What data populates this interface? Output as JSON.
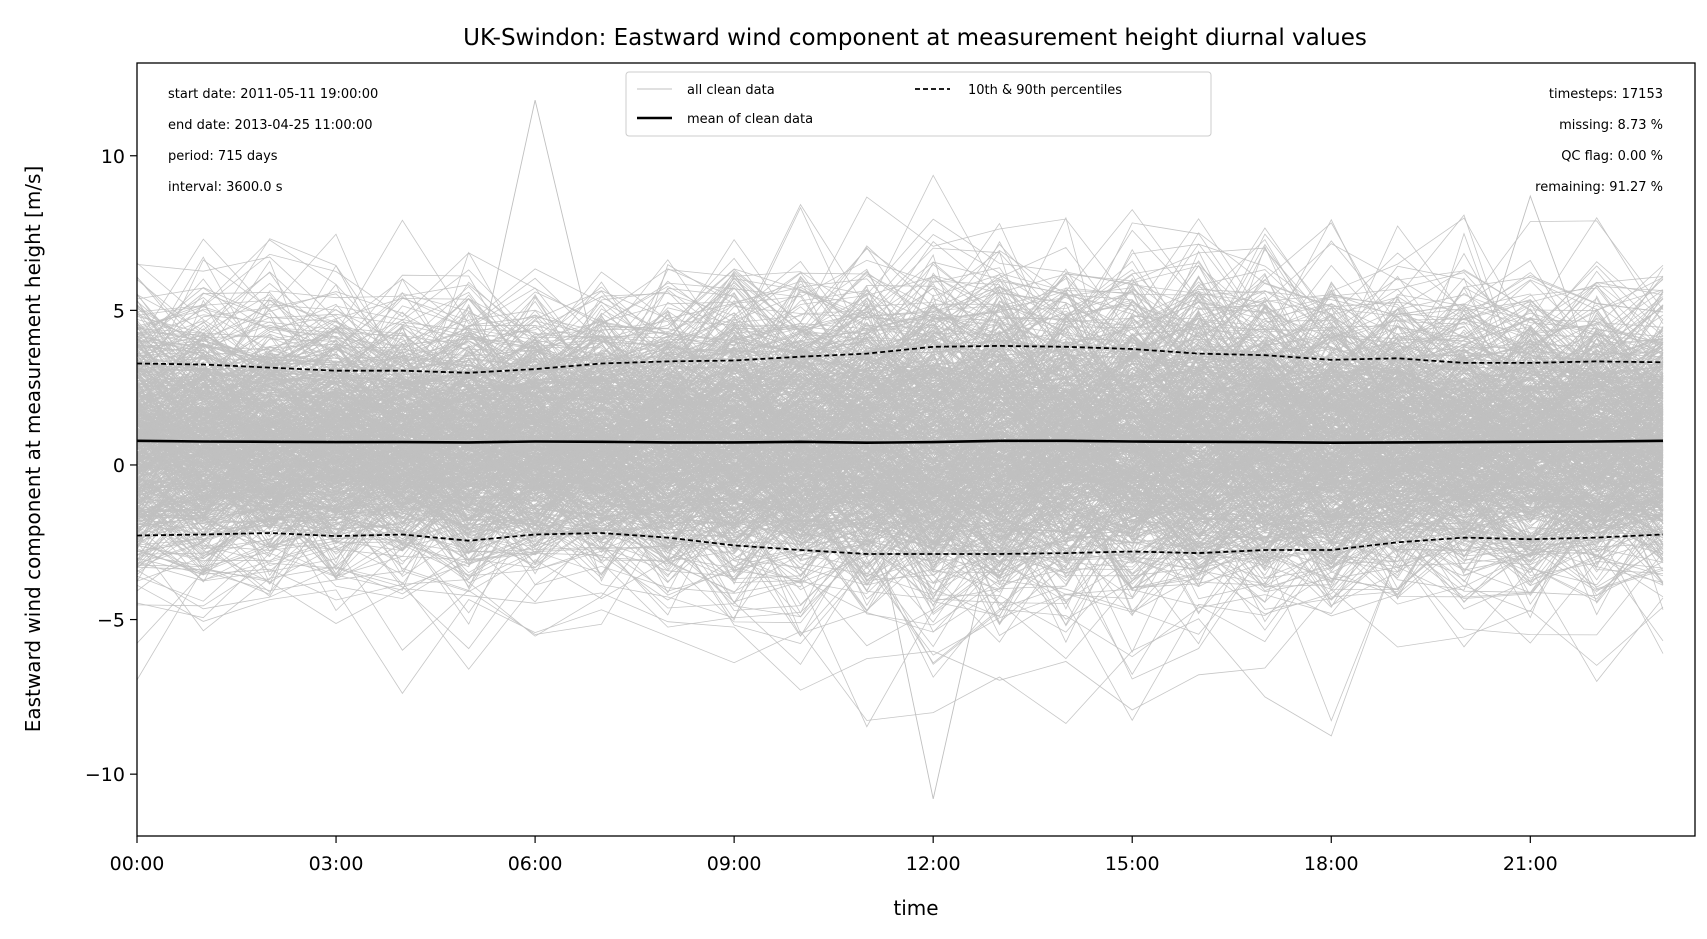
{
  "chart_data": {
    "type": "line",
    "title": "UK-Swindon: Eastward wind component at measurement height diurnal values",
    "xlabel": "time",
    "ylabel": "Eastward wind component at measurement height [m/s]",
    "xlim": [
      0,
      23
    ],
    "ylim": [
      -12,
      13
    ],
    "x_hours": [
      0,
      1,
      2,
      3,
      4,
      5,
      6,
      7,
      8,
      9,
      10,
      11,
      12,
      13,
      14,
      15,
      16,
      17,
      18,
      19,
      20,
      21,
      22,
      23
    ],
    "x_ticks": [
      {
        "hour": 0,
        "label": "00:00"
      },
      {
        "hour": 3,
        "label": "03:00"
      },
      {
        "hour": 6,
        "label": "06:00"
      },
      {
        "hour": 9,
        "label": "09:00"
      },
      {
        "hour": 12,
        "label": "12:00"
      },
      {
        "hour": 15,
        "label": "15:00"
      },
      {
        "hour": 18,
        "label": "18:00"
      },
      {
        "hour": 21,
        "label": "21:00"
      }
    ],
    "y_ticks": [
      {
        "value": 10,
        "label": "10"
      },
      {
        "value": 5,
        "label": "5"
      },
      {
        "value": 0,
        "label": "0"
      },
      {
        "value": -5,
        "label": "−5"
      },
      {
        "value": -10,
        "label": "−10"
      }
    ],
    "grid": false,
    "series": [
      {
        "name": "mean of clean data",
        "style": "solid",
        "color": "#000000",
        "values": [
          0.78,
          0.76,
          0.75,
          0.74,
          0.74,
          0.73,
          0.76,
          0.75,
          0.73,
          0.73,
          0.75,
          0.72,
          0.74,
          0.78,
          0.78,
          0.76,
          0.75,
          0.74,
          0.72,
          0.73,
          0.74,
          0.75,
          0.76,
          0.78
        ]
      },
      {
        "name": "90th percentile",
        "style": "dashed",
        "color": "#000000",
        "values": [
          3.28,
          3.25,
          3.15,
          3.05,
          3.05,
          2.98,
          3.1,
          3.28,
          3.35,
          3.38,
          3.5,
          3.6,
          3.82,
          3.85,
          3.82,
          3.75,
          3.6,
          3.55,
          3.4,
          3.45,
          3.3,
          3.3,
          3.35,
          3.32
        ]
      },
      {
        "name": "10th percentile",
        "style": "dashed",
        "color": "#000000",
        "values": [
          -2.28,
          -2.25,
          -2.2,
          -2.3,
          -2.25,
          -2.45,
          -2.25,
          -2.2,
          -2.35,
          -2.6,
          -2.75,
          -2.88,
          -2.88,
          -2.88,
          -2.85,
          -2.8,
          -2.85,
          -2.75,
          -2.75,
          -2.5,
          -2.35,
          -2.4,
          -2.35,
          -2.25
        ]
      }
    ],
    "background_lines": {
      "label": "all clean data",
      "color": "#c0c0c0",
      "count": 715,
      "note_visible_outliers": [
        {
          "hour": 6,
          "value": 11.8
        },
        {
          "hour": 12,
          "value": -10.8
        },
        {
          "hour": 21,
          "value": 8.7
        }
      ]
    },
    "legend": {
      "placement": "top-center",
      "entries": [
        {
          "label": "all clean data",
          "style": "thin-gray"
        },
        {
          "label": "10th & 90th percentiles",
          "style": "dashed"
        },
        {
          "label": "mean of clean data",
          "style": "solid"
        }
      ]
    },
    "info_left": [
      "start date: 2011-05-11 19:00:00",
      "end date: 2013-04-25 11:00:00",
      "period: 715 days",
      "interval: 3600.0 s"
    ],
    "info_right": [
      "timesteps: 17153",
      "missing: 8.73 %",
      "QC flag: 0.00 %",
      "remaining: 91.27 %"
    ]
  }
}
